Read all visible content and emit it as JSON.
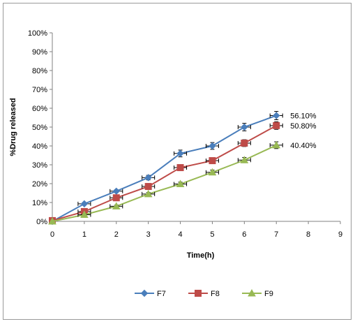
{
  "chart_data": {
    "type": "line",
    "xlabel": "Time(h)",
    "ylabel": "%Drug released",
    "xlim": [
      0,
      9
    ],
    "ylim": [
      0,
      100
    ],
    "x_ticks": [
      "0",
      "1",
      "2",
      "3",
      "4",
      "5",
      "6",
      "7",
      "8",
      "9"
    ],
    "y_ticks": [
      "0%",
      "10%",
      "20%",
      "30%",
      "40%",
      "50%",
      "60%",
      "70%",
      "80%",
      "90%",
      "100%"
    ],
    "x": [
      0,
      1,
      2,
      3,
      4,
      5,
      6,
      7
    ],
    "grid": false,
    "legend_position": "bottom",
    "series": [
      {
        "name": "F7",
        "color": "#4a7ebb",
        "marker": "diamond",
        "values": [
          0,
          9.3,
          16,
          23.2,
          36,
          40,
          50,
          56.1
        ],
        "errors": [
          0,
          0.6,
          0.7,
          1.2,
          1.8,
          1.8,
          2,
          2.2
        ],
        "end_label": "56.10%"
      },
      {
        "name": "F8",
        "color": "#be4b48",
        "marker": "square",
        "values": [
          0.4,
          5.2,
          12.5,
          18.5,
          28.5,
          32.2,
          41.5,
          50.8
        ],
        "errors": [
          0,
          0.5,
          0.7,
          1,
          1.4,
          1.4,
          1.8,
          2
        ],
        "end_label": "50.80%"
      },
      {
        "name": "F9",
        "color": "#98b954",
        "marker": "triangle",
        "values": [
          0,
          3.5,
          8,
          14.5,
          19.8,
          26,
          32.5,
          40.4
        ],
        "errors": [
          0,
          0.5,
          0.6,
          0.8,
          1,
          1.2,
          1.4,
          1.8
        ],
        "end_label": "40.40%"
      }
    ]
  }
}
